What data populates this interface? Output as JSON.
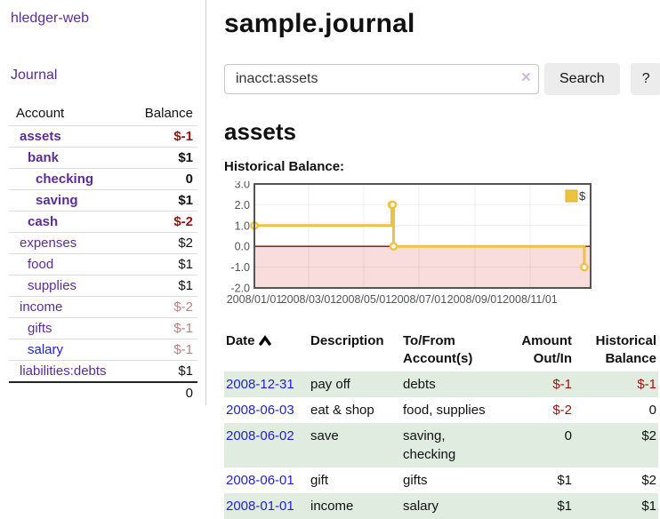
{
  "sidebar": {
    "title": "hledger-web",
    "journal_label": "Journal",
    "accounts": {
      "col_account": "Account",
      "col_balance": "Balance",
      "rows": [
        {
          "name": "assets",
          "depth": 1,
          "bold": true,
          "balance": "$-1"
        },
        {
          "name": "bank",
          "depth": 2,
          "bold": true,
          "balance": "$1"
        },
        {
          "name": "checking",
          "depth": 3,
          "bold": true,
          "balance": "0"
        },
        {
          "name": "saving",
          "depth": 3,
          "bold": true,
          "balance": "$1"
        },
        {
          "name": "cash",
          "depth": 2,
          "bold": true,
          "balance": "$-2"
        },
        {
          "name": "expenses",
          "depth": 1,
          "bold": false,
          "balance": "$2"
        },
        {
          "name": "food",
          "depth": 2,
          "bold": false,
          "balance": "$1"
        },
        {
          "name": "supplies",
          "depth": 2,
          "bold": false,
          "balance": "$1"
        },
        {
          "name": "income",
          "depth": 1,
          "bold": false,
          "balance": "$-2"
        },
        {
          "name": "gifts",
          "depth": 2,
          "bold": false,
          "balance": "$-1"
        },
        {
          "name": "salary",
          "depth": 2,
          "bold": false,
          "balance": "$-1",
          "link_color": "blue"
        },
        {
          "name": "liabilities:debts",
          "depth": 1,
          "bold": false,
          "balance": "$1"
        }
      ],
      "total": "0"
    }
  },
  "main": {
    "title": "sample.journal",
    "search": {
      "value": "inacct:assets",
      "clear_icon": "×",
      "button_label": "Search",
      "help_label": "?"
    },
    "account_heading": "assets",
    "chart_label": "Historical Balance:"
  },
  "chart_data": {
    "type": "line",
    "step": true,
    "title": "Historical Balance",
    "series": [
      {
        "name": "$",
        "color": "#edc240",
        "dates": [
          "2008-01-01",
          "2008-06-01",
          "2008-06-02",
          "2008-06-03",
          "2008-12-31"
        ],
        "x_days": [
          0,
          152,
          153,
          154,
          365
        ],
        "values": [
          1,
          2,
          2,
          0,
          -1
        ]
      }
    ],
    "ylim": [
      -2,
      3
    ],
    "yticks": [
      3,
      2,
      1,
      0,
      -1,
      -2
    ],
    "ytick_labels": [
      "3.0",
      "2.0",
      "1.0",
      "0.0",
      "-1.0",
      "-2.0"
    ],
    "xticks_days": [
      0,
      60,
      121,
      182,
      244,
      305
    ],
    "xtick_labels": [
      "2008/01/01",
      "2008/03/01",
      "2008/05/01",
      "2008/07/01",
      "2008/09/01",
      "2008/11/01"
    ],
    "x_domain_days": [
      0,
      372
    ],
    "grid": true,
    "legend": {
      "label": "$",
      "position": "top-right"
    },
    "colors": {
      "series": "#edc240",
      "negative_region": "#f9dcdc",
      "zero_line": "#8b0000",
      "gridline": "rgba(0,0,0,0.07)",
      "plot_border": "#545454",
      "tick_text": "#545454"
    }
  },
  "register": {
    "headers": [
      "Date",
      "Description",
      "To/From Account(s)",
      "Amount Out/In",
      "Historical Balance"
    ],
    "sort_icon": "chevron-up",
    "rows": [
      {
        "date": "2008-12-31",
        "description": "pay off",
        "accounts": "debts",
        "amount": "$-1",
        "balance": "$-1",
        "shaded": true
      },
      {
        "date": "2008-06-03",
        "description": "eat & shop",
        "accounts": "food, supplies",
        "amount": "$-2",
        "balance": "0",
        "shaded": false
      },
      {
        "date": "2008-06-02",
        "description": "save",
        "accounts": "saving, checking",
        "amount": "0",
        "balance": "$2",
        "shaded": true
      },
      {
        "date": "2008-06-01",
        "description": "gift",
        "accounts": "gifts",
        "amount": "$1",
        "balance": "$2",
        "shaded": false
      },
      {
        "date": "2008-01-01",
        "description": "income",
        "accounts": "salary",
        "amount": "$1",
        "balance": "$1",
        "shaded": true
      }
    ]
  },
  "colors": {
    "accent_purple": "#5b2d91",
    "link_blue": "#2222cc",
    "negative_strong": "#991111",
    "negative_soft": "#c27d7d",
    "row_green": "#e0ecdf"
  }
}
